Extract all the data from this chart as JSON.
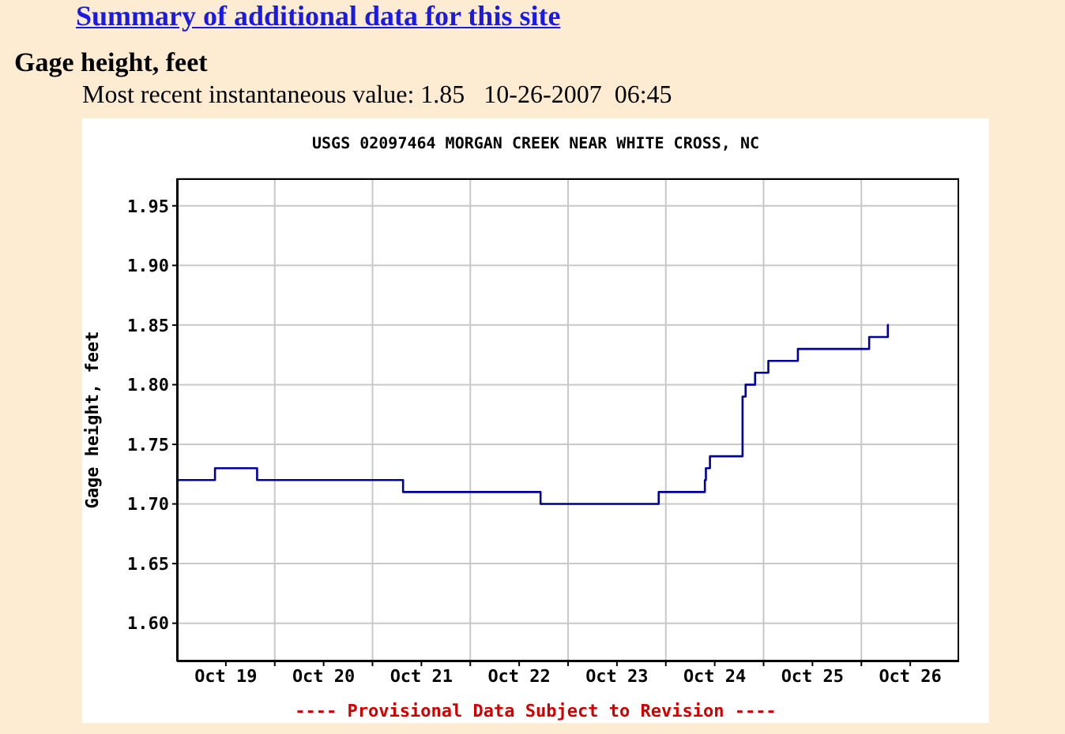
{
  "chart_data": {
    "type": "step",
    "title": "USGS 02097464 MORGAN CREEK NEAR WHITE CROSS, NC",
    "ylabel": "Gage height, feet",
    "annotations": [
      "Summary of additional data for this site",
      "Gage height, feet",
      "Most recent instantaneous value: 1.85   10-26-2007  06:45",
      "---- Provisional Data Subject to Revision ----"
    ],
    "x": [
      "2007-10-19T00:00",
      "2007-10-19T09:20",
      "2007-10-19T19:40",
      "2007-10-21T07:30",
      "2007-10-22T17:15",
      "2007-10-23T22:15",
      "2007-10-24T09:35",
      "2007-10-24T09:50",
      "2007-10-24T10:50",
      "2007-10-24T18:50",
      "2007-10-24T19:35",
      "2007-10-24T21:55",
      "2007-10-25T01:10",
      "2007-10-25T08:25",
      "2007-10-26T01:55",
      "2007-10-26T06:30",
      "2007-10-26T06:45"
    ],
    "series": [
      {
        "color": "#000099",
        "values": [
          1.72,
          1.73,
          1.72,
          1.71,
          1.7,
          1.71,
          1.72,
          1.73,
          1.74,
          1.79,
          1.8,
          1.81,
          1.82,
          1.83,
          1.84,
          1.85,
          1.85
        ]
      }
    ],
    "xlim": [
      "2007-10-19T00:00",
      "2007-10-27T00:00"
    ],
    "xticks": [
      {
        "value": "2007-10-19T12:00",
        "label": "Oct 19"
      },
      {
        "value": "2007-10-20T00:00",
        "label": null
      },
      {
        "value": "2007-10-20T12:00",
        "label": "Oct 20"
      },
      {
        "value": "2007-10-21T00:00",
        "label": null
      },
      {
        "value": "2007-10-21T12:00",
        "label": "Oct 21"
      },
      {
        "value": "2007-10-22T00:00",
        "label": null
      },
      {
        "value": "2007-10-22T12:00",
        "label": "Oct 22"
      },
      {
        "value": "2007-10-23T00:00",
        "label": null
      },
      {
        "value": "2007-10-23T12:00",
        "label": "Oct 23"
      },
      {
        "value": "2007-10-24T00:00",
        "label": null
      },
      {
        "value": "2007-10-24T12:00",
        "label": "Oct 24"
      },
      {
        "value": "2007-10-25T00:00",
        "label": null
      },
      {
        "value": "2007-10-25T12:00",
        "label": "Oct 25"
      },
      {
        "value": "2007-10-26T00:00",
        "label": null
      },
      {
        "value": "2007-10-26T12:00",
        "label": "Oct 26"
      }
    ],
    "ylim": [
      1.568,
      1.973
    ],
    "yticks": [
      {
        "value": 1.6,
        "label": "1.60"
      },
      {
        "value": 1.65,
        "label": "1.65"
      },
      {
        "value": 1.7,
        "label": "1.70"
      },
      {
        "value": 1.75,
        "label": "1.75"
      },
      {
        "value": 1.8,
        "label": "1.80"
      },
      {
        "value": 1.85,
        "label": "1.85"
      },
      {
        "value": 1.9,
        "label": "1.90"
      },
      {
        "value": 1.95,
        "label": "1.95"
      }
    ],
    "grid": true,
    "marker": "none",
    "line_style": "solid"
  }
}
